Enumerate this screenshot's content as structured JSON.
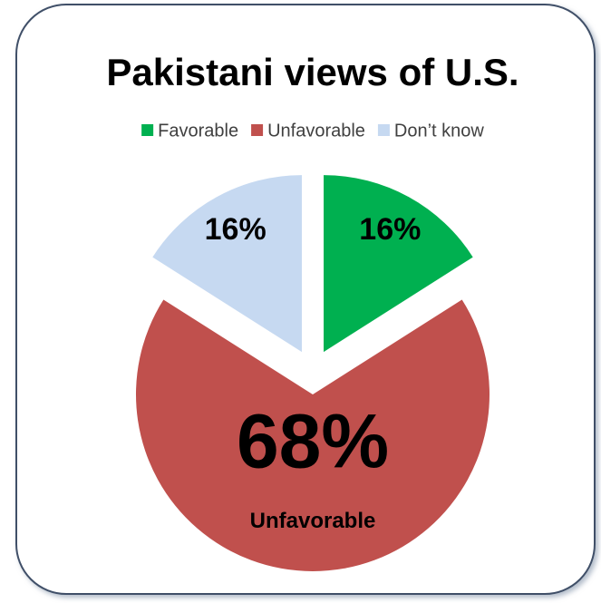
{
  "chart_data": {
    "type": "pie",
    "title": "Pakistani views of U.S.",
    "categories": [
      "Favorable",
      "Unfavorable",
      "Don’t know"
    ],
    "values": [
      16,
      68,
      16
    ],
    "value_labels": [
      "16%",
      "68%",
      "16%"
    ],
    "colors": [
      "#00b050",
      "#c0504d",
      "#c6d9f1"
    ],
    "legend": "top"
  }
}
